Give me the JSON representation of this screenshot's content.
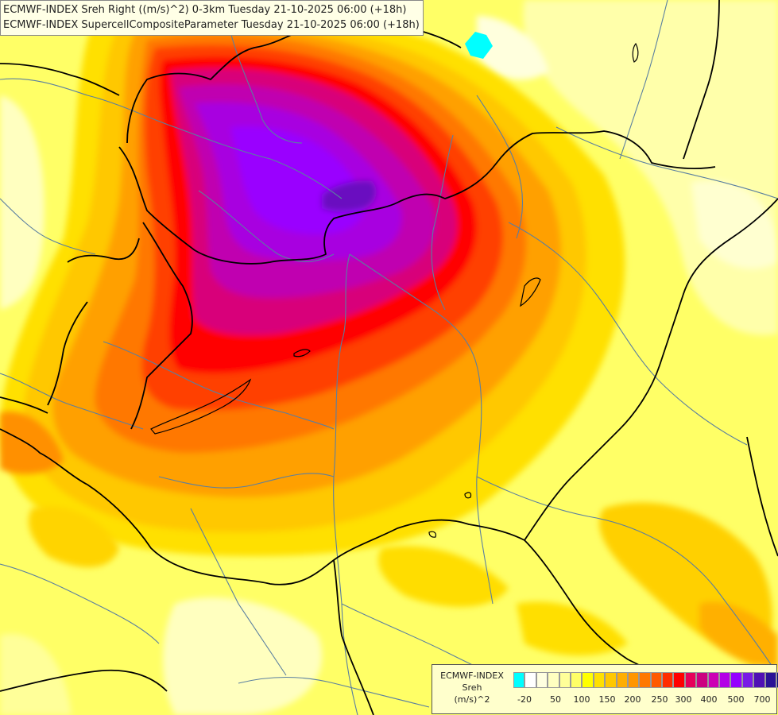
{
  "header": {
    "line1": "ECMWF-INDEX Sreh Right ((m/s)^2) 0-3km Tuesday 21-10-2025 06:00 (+18h)",
    "line2": "ECMWF-INDEX SupercellCompositeParameter Tuesday 21-10-2025 06:00 (+18h)"
  },
  "legend": {
    "title": "ECMWF-INDEX",
    "variable": "Sreh",
    "units": "(m/s)^2",
    "colors": [
      "#00ffff",
      "#ffffff",
      "#ffffe0",
      "#ffffc0",
      "#ffff99",
      "#ffff66",
      "#ffff00",
      "#ffe000",
      "#ffc800",
      "#ffae00",
      "#ff9600",
      "#ff7800",
      "#ff5a00",
      "#ff2d00",
      "#ff0000",
      "#e6005a",
      "#cc0080",
      "#cc00b4",
      "#b400e6",
      "#9600ff",
      "#7a1ae6",
      "#5010b4",
      "#2a1296",
      "#0a0a78"
    ],
    "ticks": [
      "-20",
      "50",
      "100",
      "150",
      "200",
      "250",
      "300",
      "400",
      "500",
      "700"
    ]
  },
  "colors": {
    "background": "#ffff66",
    "border_line": "#000000",
    "river_line": "#5a7fa0"
  }
}
